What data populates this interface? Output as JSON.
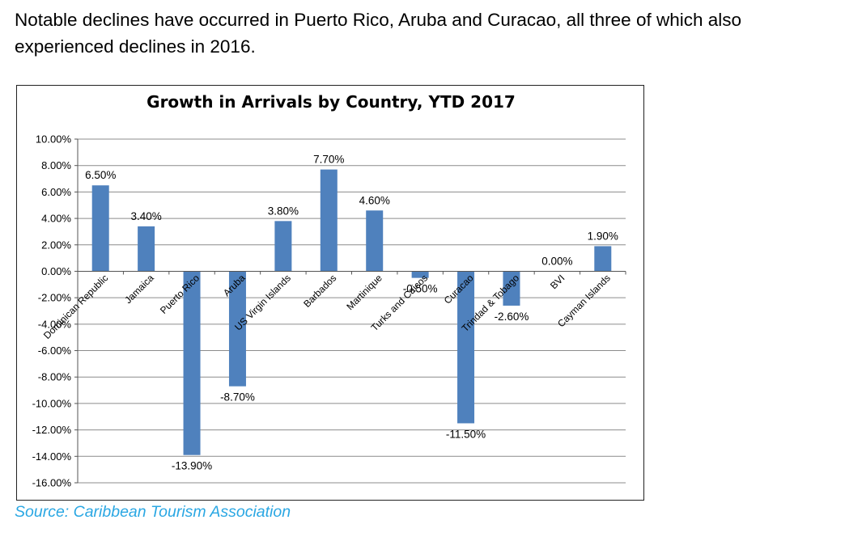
{
  "intro_text": "Notable declines have occurred in Puerto Rico, Aruba and Curacao, all three of which also experienced declines in 2016.",
  "source_text": "Source: Caribbean Tourism Association",
  "chart_data": {
    "type": "bar",
    "title": "Growth in Arrivals by Country, YTD 2017",
    "xlabel": "",
    "ylabel": "",
    "categories": [
      "Dominican Republic",
      "Jamaica",
      "Puerto Rico",
      "Aruba",
      "US Virgin Islands",
      "Barbados",
      "Martinique",
      "Turks and Caicos",
      "Curacao",
      "Trindad & Tobago",
      "BVI",
      "Cayman Islands"
    ],
    "values": [
      6.5,
      3.4,
      -13.9,
      -8.7,
      3.8,
      7.7,
      4.6,
      -0.5,
      -11.5,
      -2.6,
      0.0,
      1.9
    ],
    "data_labels": [
      "6.50%",
      "3.40%",
      "-13.90%",
      "-8.70%",
      "3.80%",
      "7.70%",
      "4.60%",
      "-0.50%",
      "-11.50%",
      "-2.60%",
      "0.00%",
      "1.90%"
    ],
    "ylim": [
      -16,
      10
    ],
    "yticks": [
      10,
      8,
      6,
      4,
      2,
      0,
      -2,
      -4,
      -6,
      -8,
      -10,
      -12,
      -14,
      -16
    ],
    "ytick_labels": [
      "10.00%",
      "8.00%",
      "6.00%",
      "4.00%",
      "2.00%",
      "0.00%",
      "-2.00%",
      "-4.00%",
      "-6.00%",
      "-8.00%",
      "-10.00%",
      "-12.00%",
      "-14.00%",
      "-16.00%"
    ],
    "grid": true,
    "legend": "none",
    "bar_color": "#4f81bd",
    "grid_color": "#8c8c8c"
  }
}
